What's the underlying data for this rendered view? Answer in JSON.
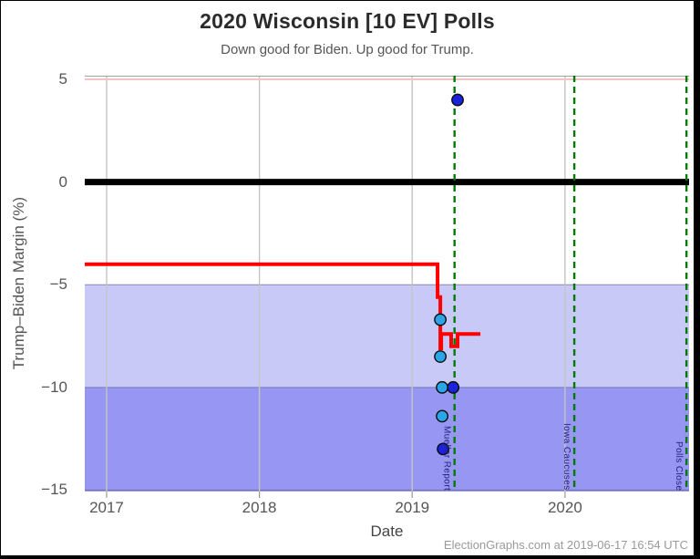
{
  "header": {
    "title": "2020 Wisconsin [10 EV] Polls",
    "subtitle": "Down good for Biden. Up good for Trump."
  },
  "footer": {
    "credit": "ElectionGraphs.com at 2019-06-17 16:54 UTC"
  },
  "chart_data": {
    "type": "line",
    "title": "2020 Wisconsin [10 EV] Polls",
    "subtitle": "Down good for Biden. Up good for Trump.",
    "xlabel": "Date",
    "ylabel": "Trump–Biden Margin (%)",
    "xlim": [
      2016.857,
      2020.812
    ],
    "ylim": [
      -15.07,
      5.18
    ],
    "grid": "vertical-years",
    "legend": "none",
    "x_ticks": [
      {
        "value": 2017,
        "label": "2017"
      },
      {
        "value": 2018,
        "label": "2018"
      },
      {
        "value": 2019,
        "label": "2019"
      },
      {
        "value": 2020,
        "label": "2020"
      }
    ],
    "y_ticks": [
      {
        "value": 5,
        "label": "5"
      },
      {
        "value": 0,
        "label": "0"
      },
      {
        "value": -5,
        "label": "−5"
      },
      {
        "value": -10,
        "label": "−10"
      },
      {
        "value": -15,
        "label": "−15"
      }
    ],
    "bands": [
      {
        "from": -5,
        "to": -10,
        "color": "#c9c9f7",
        "meaning": "Biden lead 5-10"
      },
      {
        "from": -10,
        "to": -15.07,
        "color": "#9797f3",
        "meaning": "Biden lead 10+"
      }
    ],
    "band_borders": [
      -5,
      -10,
      -15
    ],
    "reference_lines": [
      {
        "value": 5,
        "color": "#f6c2c2",
        "width": 2,
        "meaning": "Trump +5 boundary"
      },
      {
        "value": 0,
        "color": "#000000",
        "width": 7,
        "meaning": "tie line"
      }
    ],
    "event_lines": [
      {
        "x": 2019.277,
        "label": "Mueller Report"
      },
      {
        "x": 2020.061,
        "label": "Iowa Caucuses"
      },
      {
        "x": 2020.795,
        "label": "Polls Close"
      }
    ],
    "trend": {
      "name": "poll-average-margin",
      "color": "#ff0000",
      "width": 4,
      "points": [
        [
          2016.857,
          -4.0
        ],
        [
          2019.166,
          -4.0
        ],
        [
          2019.166,
          -5.6
        ],
        [
          2019.184,
          -5.6
        ],
        [
          2019.184,
          -8.1
        ],
        [
          2019.19,
          -8.1
        ],
        [
          2019.19,
          -7.4
        ],
        [
          2019.255,
          -7.4
        ],
        [
          2019.255,
          -8.0
        ],
        [
          2019.297,
          -8.0
        ],
        [
          2019.297,
          -7.4
        ],
        [
          2019.446,
          -7.4
        ]
      ]
    },
    "polls": [
      {
        "x": 2019.297,
        "y": 4.0,
        "type": "recent"
      },
      {
        "x": 2019.184,
        "y": -6.7,
        "type": "older"
      },
      {
        "x": 2019.184,
        "y": -8.5,
        "type": "older"
      },
      {
        "x": 2019.196,
        "y": -10.0,
        "type": "older"
      },
      {
        "x": 2019.268,
        "y": -10.0,
        "type": "recent"
      },
      {
        "x": 2019.196,
        "y": -11.4,
        "type": "older"
      },
      {
        "x": 2019.202,
        "y": -13.0,
        "type": "recent"
      }
    ],
    "style": {
      "point_colors": {
        "recent": "#1b22dd",
        "older": "#2aa6e8"
      },
      "point_radius": 6.2,
      "point_stroke": "#0a0a0a",
      "grid_color": "#c4c4c4",
      "plot_border_color": "#a0a0a0",
      "band_border_color": "rgba(80,80,130,0.5)",
      "event_line_color": "#007a00",
      "annotation_color": "#23237a",
      "axis_text_color": "#555555",
      "tick_mark_color": "#999999"
    }
  }
}
